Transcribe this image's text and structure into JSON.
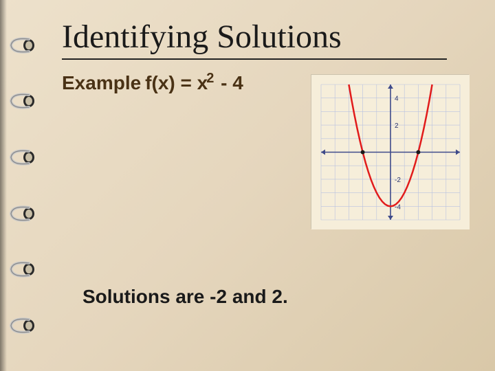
{
  "title": "Identifying Solutions",
  "example": {
    "label": "Example",
    "func_prefix": "f(x) = x",
    "exponent": "2",
    "suffix": " - 4"
  },
  "solutions_text": "Solutions are -2 and 2.",
  "chart": {
    "type": "line",
    "background_color": "#f6eeda",
    "axis_color": "#3e4a8a",
    "grid_color": "#b8c1e0",
    "curve_color": "#e11b1b",
    "curve_width": 2.5,
    "xlim": [
      -5,
      5
    ],
    "ylim": [
      -5,
      5
    ],
    "xtick_step": 1,
    "ytick_step": 1,
    "tick_label_color": "#2a3570",
    "tick_label_fontsize": 10,
    "labeled_yticks": [
      -4,
      -2,
      2,
      4
    ],
    "root_marker_color": "#1a1a1a",
    "root_marker_radius": 3,
    "roots_x": [
      -2,
      2
    ],
    "parabola": {
      "a": 1,
      "b": 0,
      "c": -4,
      "samples_from": -3.2,
      "samples_to": 3.2,
      "step": 0.2
    }
  },
  "ring_count": 6,
  "colors": {
    "slide_bg_start": "#ede1cb",
    "slide_bg_end": "#d9c8a8",
    "title_color": "#1a1a1a",
    "body_text_color": "#4a3215"
  }
}
